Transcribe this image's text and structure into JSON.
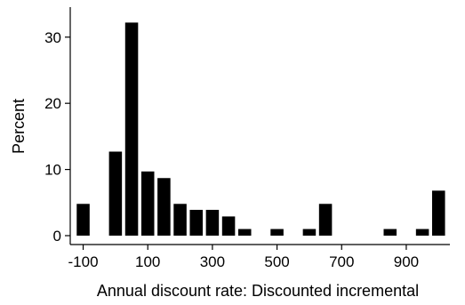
{
  "chart_data": {
    "type": "bar",
    "title": "",
    "xlabel": "Annual discount rate: Discounted incremental",
    "ylabel": "Percent",
    "xlim": [
      -140,
      1035
    ],
    "ylim": [
      0,
      34
    ],
    "grid": false,
    "legend": "none",
    "bar_color": "#000000",
    "x_ticks": [
      -100,
      100,
      300,
      500,
      700,
      900
    ],
    "x_tick_labels": [
      "-100",
      "100",
      "300",
      "500",
      "700",
      "900"
    ],
    "y_ticks": [
      0,
      10,
      20,
      30
    ],
    "y_tick_labels": [
      "0",
      "10",
      "20",
      "30"
    ],
    "bins": [
      {
        "x0": -120,
        "x1": -80,
        "value": 4.8
      },
      {
        "x0": -20,
        "x1": 20,
        "value": 12.7
      },
      {
        "x0": 30,
        "x1": 70,
        "value": 32.2
      },
      {
        "x0": 80,
        "x1": 120,
        "value": 9.7
      },
      {
        "x0": 130,
        "x1": 170,
        "value": 8.7
      },
      {
        "x0": 180,
        "x1": 220,
        "value": 4.8
      },
      {
        "x0": 230,
        "x1": 270,
        "value": 3.9
      },
      {
        "x0": 280,
        "x1": 320,
        "value": 3.9
      },
      {
        "x0": 330,
        "x1": 370,
        "value": 2.9
      },
      {
        "x0": 380,
        "x1": 420,
        "value": 1.0
      },
      {
        "x0": 480,
        "x1": 520,
        "value": 1.0
      },
      {
        "x0": 580,
        "x1": 620,
        "value": 1.0
      },
      {
        "x0": 630,
        "x1": 670,
        "value": 4.8
      },
      {
        "x0": 830,
        "x1": 870,
        "value": 1.0
      },
      {
        "x0": 930,
        "x1": 970,
        "value": 1.0
      },
      {
        "x0": 980,
        "x1": 1020,
        "value": 6.8
      }
    ]
  }
}
